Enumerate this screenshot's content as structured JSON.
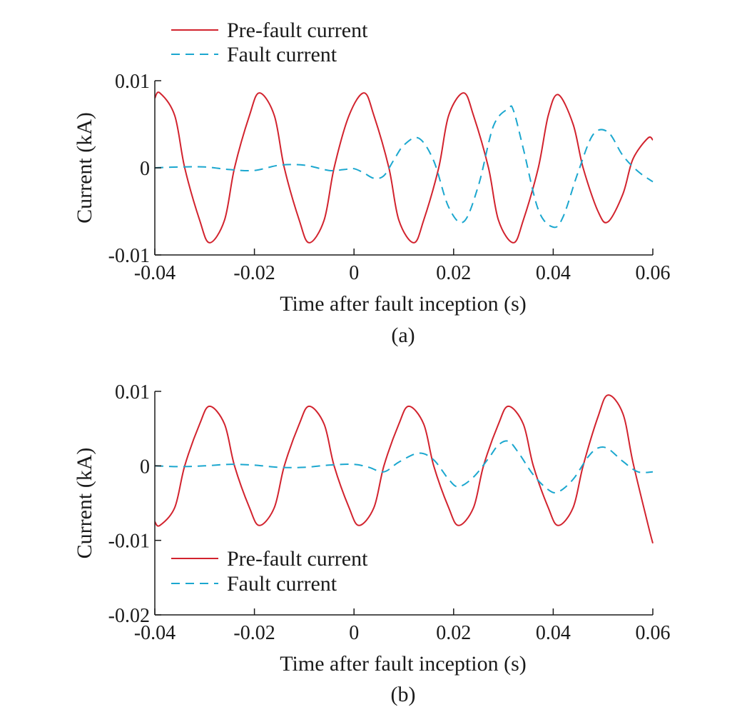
{
  "colors": {
    "pre_fault": "#d2232e",
    "fault": "#1ba7cf",
    "axis": "#1a1a1a"
  },
  "chart_data": [
    {
      "type": "line",
      "panel_label": "(a)",
      "xlabel": "Time after fault inception (s)",
      "ylabel": "Current (kA)",
      "xlim": [
        -0.04,
        0.06
      ],
      "ylim": [
        -0.01,
        0.01
      ],
      "x_ticks": [
        -0.04,
        -0.02,
        0,
        0.02,
        0.04,
        0.06
      ],
      "x_tick_labels": [
        "-0.04",
        "-0.02",
        "0",
        "0.02",
        "0.04",
        "0.06"
      ],
      "y_ticks": [
        0.01,
        0,
        -0.01
      ],
      "y_tick_labels": [
        "0.01",
        "0",
        "-0.01"
      ],
      "legend_position": "top-left above plot",
      "series": [
        {
          "name": "Pre-fault current",
          "style": "solid",
          "color": "#d2232e",
          "x": [
            -0.04,
            -0.039,
            -0.036,
            -0.034,
            -0.031,
            -0.029,
            -0.026,
            -0.024,
            -0.021,
            -0.019,
            -0.016,
            -0.014,
            -0.011,
            -0.009,
            -0.006,
            -0.004,
            -0.001,
            0.002,
            0.004,
            0.007,
            0.009,
            0.012,
            0.014,
            0.017,
            0.019,
            0.022,
            0.024,
            0.027,
            0.029,
            0.032,
            0.034,
            0.037,
            0.039,
            0.041,
            0.044,
            0.046,
            0.049,
            0.051,
            0.054,
            0.056,
            0.059,
            0.06
          ],
          "y": [
            0.008,
            0.0086,
            0.006,
            0.0,
            -0.006,
            -0.0086,
            -0.006,
            0.0,
            0.006,
            0.0086,
            0.006,
            0.0,
            -0.006,
            -0.0086,
            -0.006,
            0.0,
            0.006,
            0.0086,
            0.006,
            0.0,
            -0.006,
            -0.0086,
            -0.006,
            0.0,
            0.006,
            0.0086,
            0.006,
            0.0,
            -0.006,
            -0.0086,
            -0.006,
            0.0,
            0.006,
            0.0084,
            0.005,
            0.0,
            -0.005,
            -0.0062,
            -0.003,
            0.001,
            0.0034,
            0.0032
          ]
        },
        {
          "name": "Fault current",
          "style": "dashed",
          "color": "#1ba7cf",
          "x": [
            -0.04,
            -0.035,
            -0.03,
            -0.025,
            -0.02,
            -0.015,
            -0.01,
            -0.005,
            -0.002,
            0.0,
            0.002,
            0.004,
            0.006,
            0.008,
            0.01,
            0.013,
            0.016,
            0.019,
            0.022,
            0.025,
            0.028,
            0.031,
            0.032,
            0.034,
            0.037,
            0.04,
            0.042,
            0.045,
            0.048,
            0.051,
            0.054,
            0.057,
            0.06
          ],
          "y": [
            0.0,
            0.0001,
            0.0001,
            -0.0002,
            -0.0003,
            0.0003,
            0.0003,
            -0.0003,
            -0.0002,
            -0.0001,
            -0.0006,
            -0.0012,
            -0.0009,
            0.0009,
            0.0026,
            0.0034,
            0.0008,
            -0.0045,
            -0.0062,
            -0.002,
            0.0048,
            0.0068,
            0.0066,
            0.0022,
            -0.0048,
            -0.0068,
            -0.0056,
            -0.0005,
            0.0038,
            0.0041,
            0.0014,
            -0.0004,
            -0.0016
          ]
        }
      ]
    },
    {
      "type": "line",
      "panel_label": "(b)",
      "xlabel": "Time after fault inception (s)",
      "ylabel": "Current (kA)",
      "xlim": [
        -0.04,
        0.06
      ],
      "ylim": [
        -0.02,
        0.01
      ],
      "x_ticks": [
        -0.04,
        -0.02,
        0,
        0.02,
        0.04,
        0.06
      ],
      "x_tick_labels": [
        "-0.04",
        "-0.02",
        "0",
        "0.02",
        "0.04",
        "0.06"
      ],
      "y_ticks": [
        0.01,
        0,
        -0.01,
        -0.02
      ],
      "y_tick_labels": [
        "0.01",
        "0",
        "-0.01",
        "-0.02"
      ],
      "legend_position": "bottom-left inside plot",
      "series": [
        {
          "name": "Pre-fault current",
          "style": "solid",
          "color": "#d2232e",
          "x": [
            -0.04,
            -0.039,
            -0.036,
            -0.034,
            -0.031,
            -0.029,
            -0.026,
            -0.024,
            -0.021,
            -0.019,
            -0.016,
            -0.014,
            -0.011,
            -0.009,
            -0.006,
            -0.004,
            -0.001,
            0.001,
            0.004,
            0.006,
            0.009,
            0.011,
            0.014,
            0.016,
            0.019,
            0.021,
            0.024,
            0.026,
            0.029,
            0.031,
            0.034,
            0.036,
            0.039,
            0.041,
            0.044,
            0.046,
            0.049,
            0.051,
            0.054,
            0.056,
            0.059,
            0.06
          ],
          "y": [
            -0.0075,
            -0.008,
            -0.0056,
            0.0,
            0.0056,
            0.008,
            0.0056,
            0.0,
            -0.0056,
            -0.008,
            -0.0056,
            0.0,
            0.0056,
            0.008,
            0.0056,
            0.0,
            -0.0056,
            -0.008,
            -0.0056,
            0.0,
            0.0056,
            0.008,
            0.0056,
            0.0,
            -0.0056,
            -0.008,
            -0.0056,
            0.0,
            0.0056,
            0.008,
            0.0056,
            0.0,
            -0.0056,
            -0.008,
            -0.0056,
            0.0,
            0.0066,
            0.0095,
            0.007,
            0.0005,
            -0.0078,
            -0.0104
          ]
        },
        {
          "name": "Fault current",
          "style": "dashed",
          "color": "#1ba7cf",
          "x": [
            -0.04,
            -0.035,
            -0.03,
            -0.025,
            -0.02,
            -0.015,
            -0.01,
            -0.005,
            0.0,
            0.003,
            0.006,
            0.009,
            0.013,
            0.016,
            0.019,
            0.021,
            0.024,
            0.027,
            0.029,
            0.031,
            0.033,
            0.036,
            0.039,
            0.041,
            0.044,
            0.047,
            0.049,
            0.051,
            0.054,
            0.057,
            0.06
          ],
          "y": [
            0.0,
            -0.0001,
            0.0,
            0.0002,
            0.0001,
            -0.0002,
            -0.0002,
            0.0001,
            0.0002,
            -0.0002,
            -0.0008,
            0.0005,
            0.0017,
            0.0008,
            -0.0018,
            -0.0028,
            -0.0015,
            0.001,
            0.0028,
            0.0033,
            0.0018,
            -0.0012,
            -0.0032,
            -0.0035,
            -0.0018,
            0.0012,
            0.0024,
            0.0023,
            0.0006,
            -0.0008,
            -0.0008
          ]
        }
      ]
    }
  ]
}
